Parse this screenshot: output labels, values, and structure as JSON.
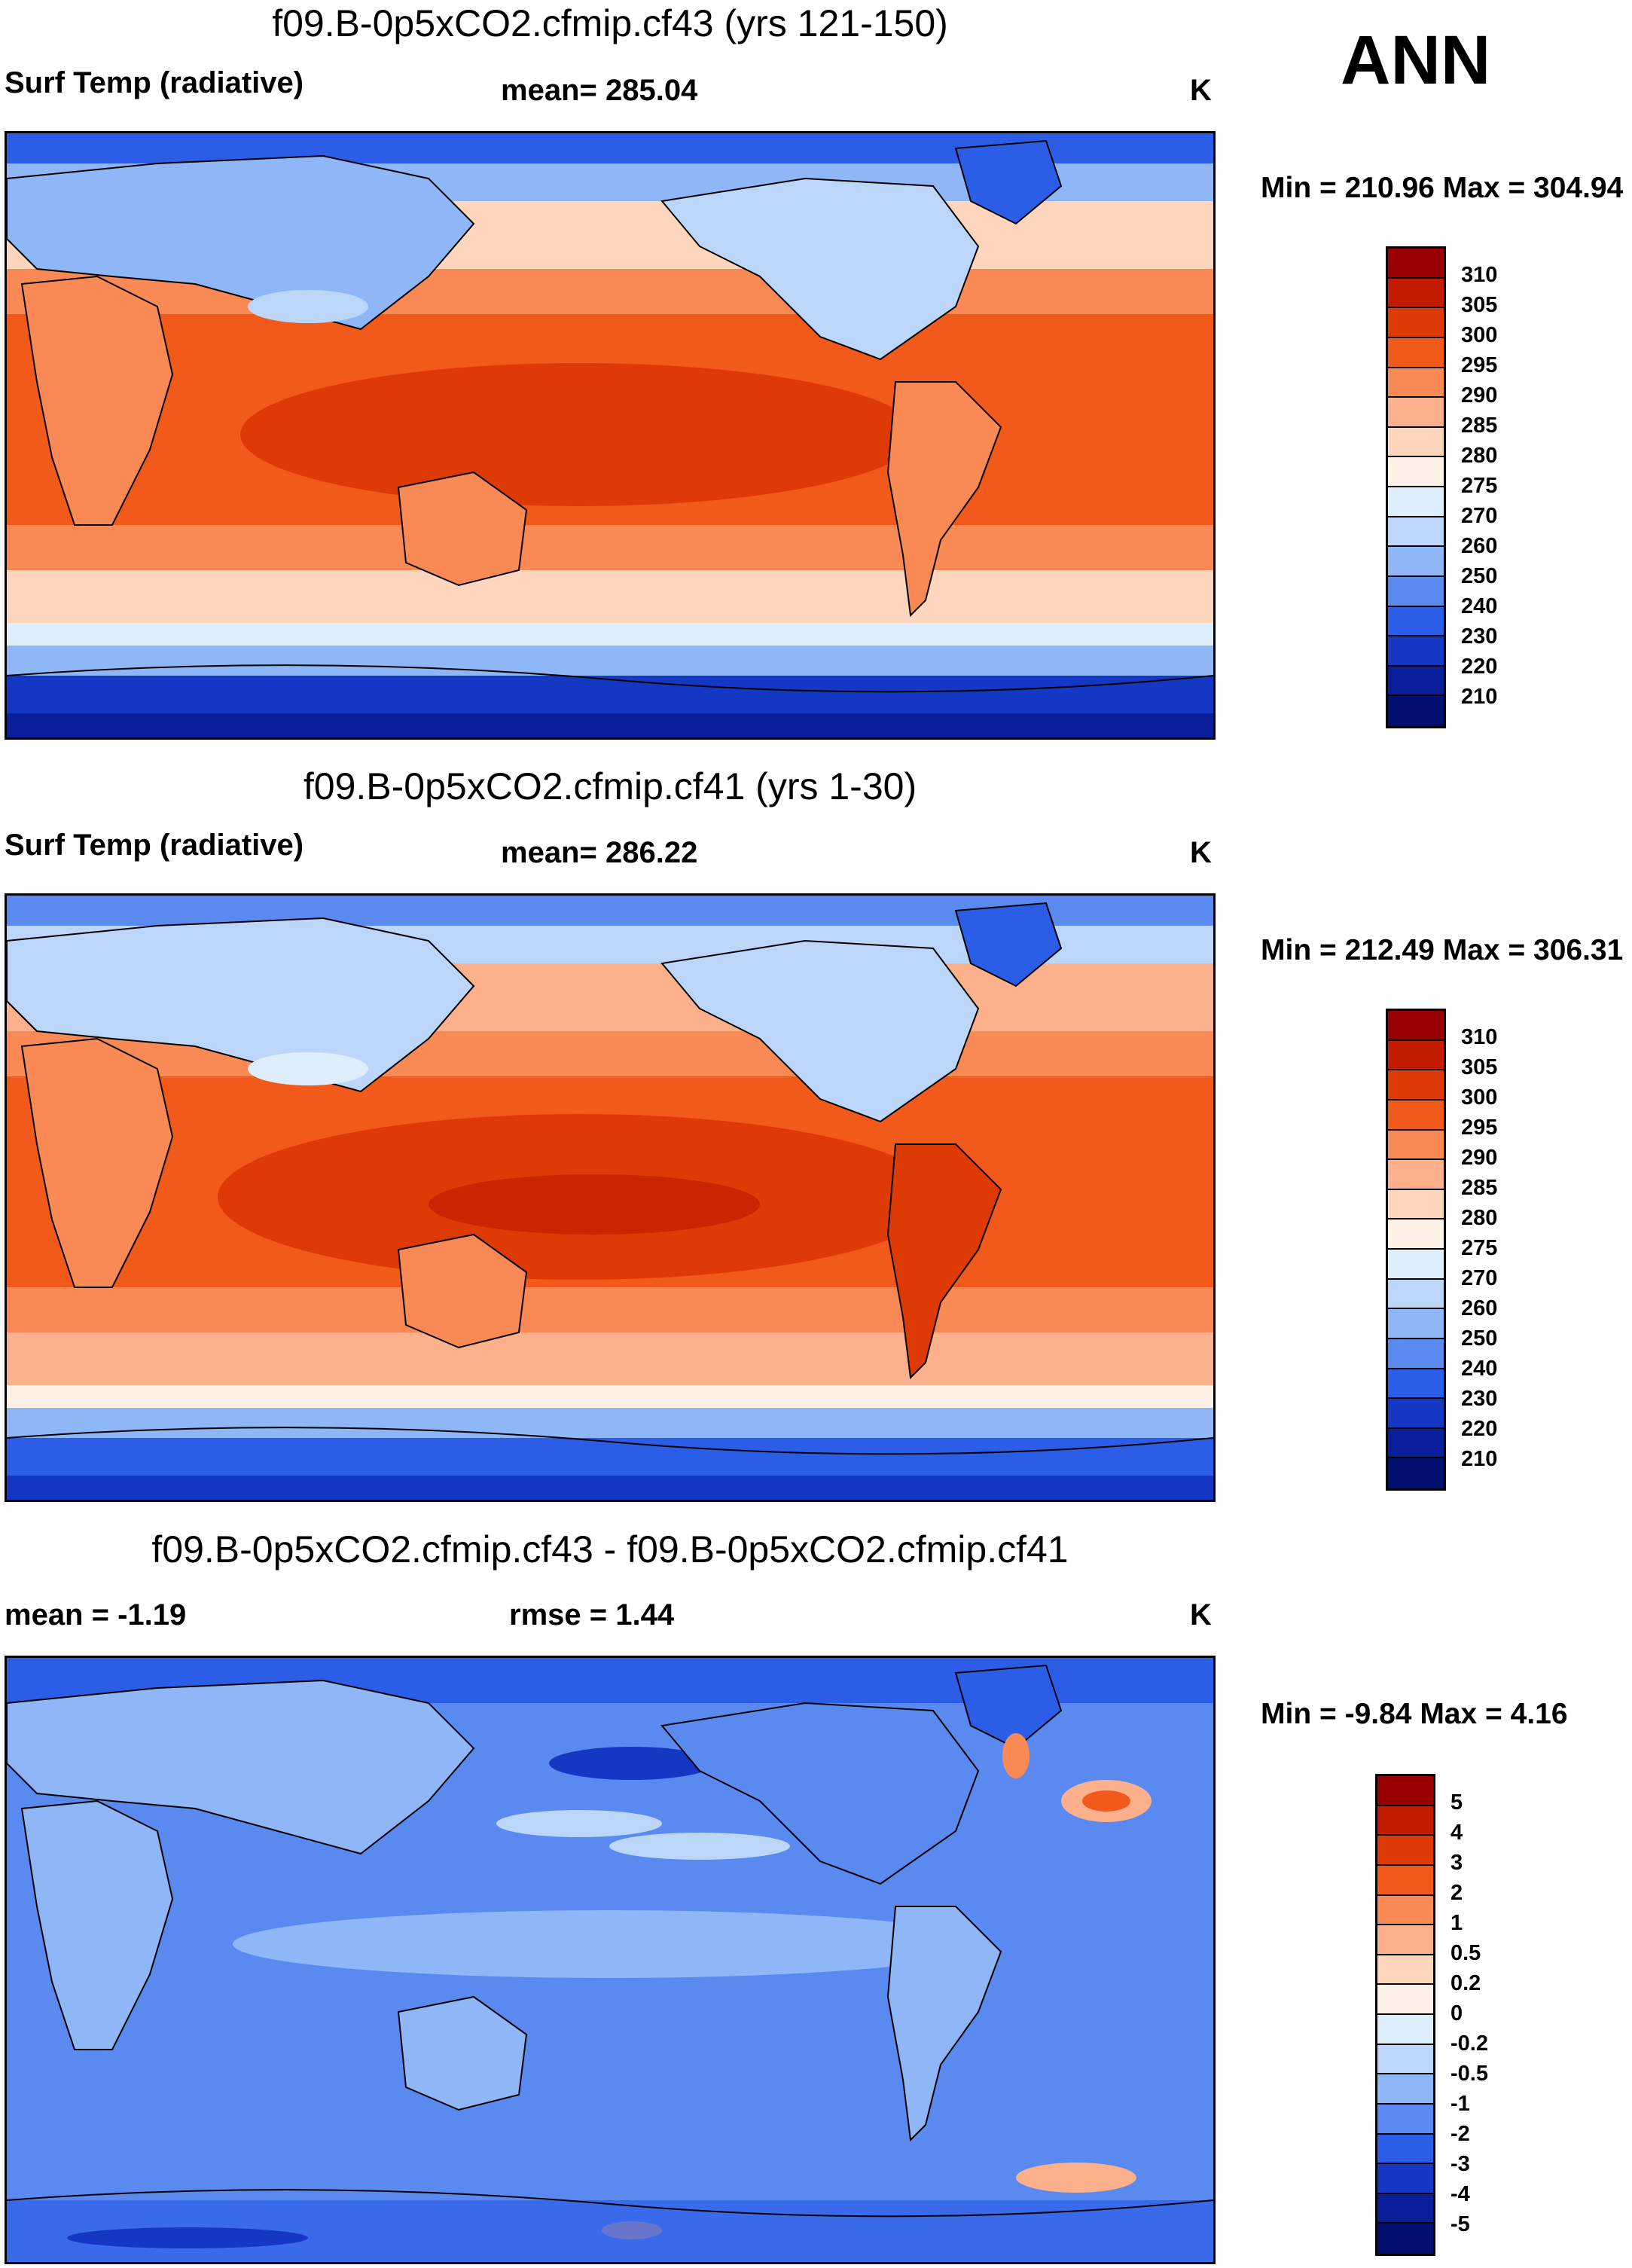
{
  "annual_label": "ANN",
  "panels": [
    {
      "title": "f09.B-0p5xCO2.cfmip.cf43 (yrs 121-150)",
      "left_label": "Surf Temp (radiative)",
      "center_label": "mean= 285.04",
      "units": "K",
      "minmax": "Min = 210.96 Max = 304.94",
      "colorbar_ticks": [
        "310",
        "305",
        "300",
        "295",
        "290",
        "285",
        "280",
        "275",
        "270",
        "260",
        "250",
        "240",
        "230",
        "220",
        "210"
      ],
      "colorbar_colors": [
        "#990000",
        "#c21b00",
        "#de3a06",
        "#f25a1c",
        "#fa8a55",
        "#fcb08c",
        "#fdd6bd",
        "#fff1e6",
        "#dfeefc",
        "#bcd6fa",
        "#8fb6f7",
        "#5a8af0",
        "#2b5de6",
        "#1438c4",
        "#0a1e99",
        "#030f70"
      ]
    },
    {
      "title": "f09.B-0p5xCO2.cfmip.cf41 (yrs 1-30)",
      "left_label": "Surf Temp (radiative)",
      "center_label": "mean= 286.22",
      "units": "K",
      "minmax": "Min = 212.49 Max = 306.31",
      "colorbar_ticks": [
        "310",
        "305",
        "300",
        "295",
        "290",
        "285",
        "280",
        "275",
        "270",
        "260",
        "250",
        "240",
        "230",
        "220",
        "210"
      ],
      "colorbar_colors": [
        "#990000",
        "#c21b00",
        "#de3a06",
        "#f25a1c",
        "#fa8a55",
        "#fcb08c",
        "#fdd6bd",
        "#fff1e6",
        "#dfeefc",
        "#bcd6fa",
        "#8fb6f7",
        "#5a8af0",
        "#2b5de6",
        "#1438c4",
        "#0a1e99",
        "#030f70"
      ]
    },
    {
      "title": "f09.B-0p5xCO2.cfmip.cf43 - f09.B-0p5xCO2.cfmip.cf41",
      "left_label": "mean =  -1.19",
      "center_label": "rmse =   1.44",
      "units": "K",
      "minmax": "Min =  -9.84 Max =   4.16",
      "colorbar_ticks": [
        "5",
        "4",
        "3",
        "2",
        "1",
        "0.5",
        "0.2",
        "0",
        "-0.2",
        "-0.5",
        "-1",
        "-2",
        "-3",
        "-4",
        "-5"
      ],
      "colorbar_colors": [
        "#990000",
        "#c21b00",
        "#de3a06",
        "#f25a1c",
        "#fa8a55",
        "#fcb08c",
        "#fdd6bd",
        "#fff1e6",
        "#dfeefc",
        "#bcd6fa",
        "#8fb6f7",
        "#5a8af0",
        "#2b5de6",
        "#1438c4",
        "#0a1e99",
        "#030f70"
      ]
    }
  ]
}
